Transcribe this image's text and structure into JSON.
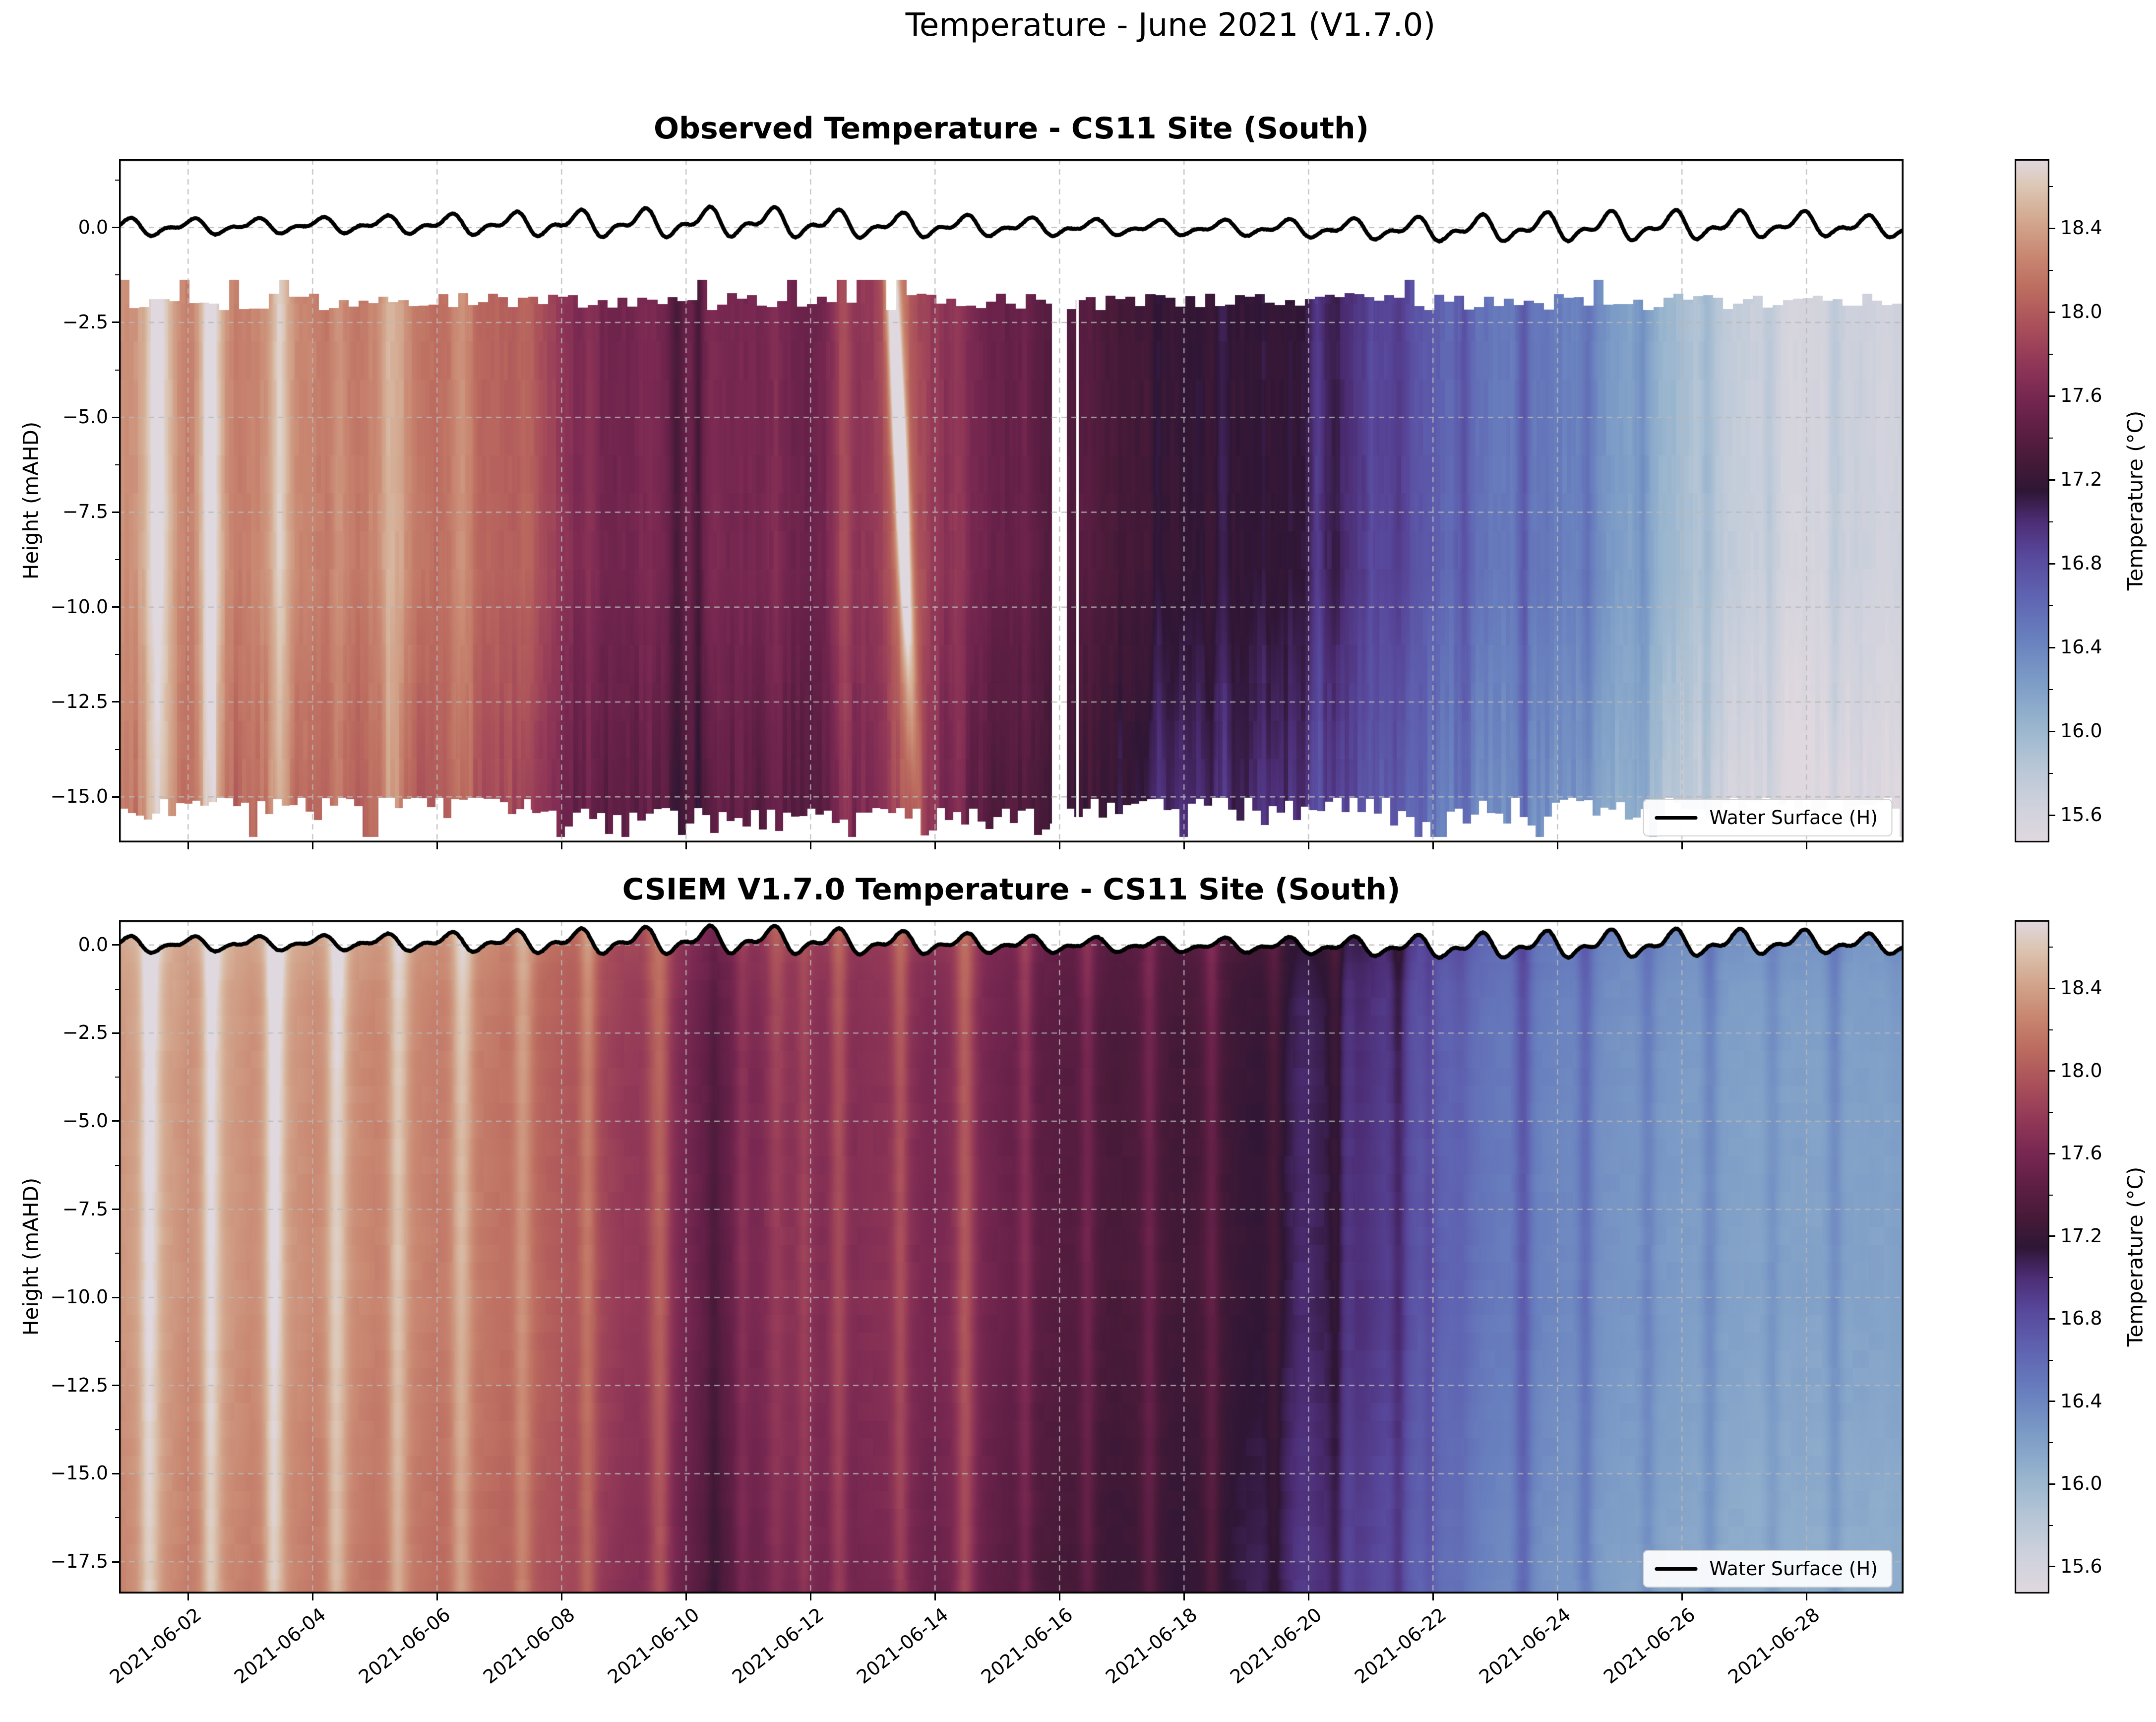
{
  "figure": {
    "suptitle": "Temperature - June 2021 (V1.7.0)"
  },
  "chart_data": {
    "type": "heatmap",
    "suptitle": "Temperature - June 2021 (V1.7.0)",
    "colormap": {
      "vmin": 15.47,
      "vmax": 18.73,
      "stops": [
        [
          0.0,
          "#e0d8df"
        ],
        [
          0.06,
          "#cdd1dc"
        ],
        [
          0.12,
          "#b3c4d5"
        ],
        [
          0.18,
          "#94b2cd"
        ],
        [
          0.24,
          "#7b9ac6"
        ],
        [
          0.3,
          "#687fbe"
        ],
        [
          0.36,
          "#5f64b2"
        ],
        [
          0.42,
          "#58489c"
        ],
        [
          0.47,
          "#4c2d75"
        ],
        [
          0.515,
          "#2f1635"
        ],
        [
          0.56,
          "#471a38"
        ],
        [
          0.61,
          "#611f46"
        ],
        [
          0.66,
          "#7b2952"
        ],
        [
          0.71,
          "#953a58"
        ],
        [
          0.76,
          "#ab525a"
        ],
        [
          0.81,
          "#bc6c5f"
        ],
        [
          0.86,
          "#c98872"
        ],
        [
          0.91,
          "#d3a78e"
        ],
        [
          0.96,
          "#dcc6b4"
        ],
        [
          1.0,
          "#e0d8df"
        ]
      ]
    },
    "colorbar": {
      "label": "Temperature (°C)",
      "major_ticks": [
        18.4,
        18.0,
        17.6,
        17.2,
        16.8,
        16.4,
        16.0,
        15.6
      ],
      "minor_ticks": [
        18.6,
        18.2,
        17.8,
        17.4,
        17.0,
        16.6,
        16.2,
        15.8
      ]
    },
    "x": {
      "xlim_days": [
        0.89,
        29.56
      ],
      "tick_days": [
        2,
        4,
        6,
        8,
        10,
        12,
        14,
        16,
        18,
        20,
        22,
        24,
        26,
        28
      ],
      "tick_labels": [
        "2021-06-02",
        "2021-06-04",
        "2021-06-06",
        "2021-06-08",
        "2021-06-10",
        "2021-06-12",
        "2021-06-14",
        "2021-06-16",
        "2021-06-18",
        "2021-06-20",
        "2021-06-22",
        "2021-06-24",
        "2021-06-26",
        "2021-06-28"
      ]
    },
    "water_surface": {
      "drift": [
        [
          1,
          0.0
        ],
        [
          5,
          0.07
        ],
        [
          9,
          0.1
        ],
        [
          11,
          0.14
        ],
        [
          13,
          0.06
        ],
        [
          16,
          0.0
        ],
        [
          19,
          -0.02
        ],
        [
          22,
          -0.06
        ],
        [
          24,
          0.0
        ],
        [
          26,
          0.04
        ],
        [
          28,
          0.08
        ],
        [
          29.5,
          -0.02
        ]
      ],
      "components": [
        [
          1.035,
          0.22,
          1.8
        ],
        [
          0.517,
          0.13,
          0.6
        ]
      ],
      "spring_neap": {
        "period": 14.5,
        "ref_day": 6.9,
        "amp": 0.32
      }
    },
    "panels": [
      {
        "kind": "observed",
        "title": "Observed Temperature - CS11 Site (South)",
        "ylabel": "Height (mAHD)",
        "legend_label": "Water Surface (H)",
        "ylim": [
          -16.2,
          1.8
        ],
        "yticks": [
          0.0,
          -2.5,
          -5.0,
          -7.5,
          -10.0,
          -12.5,
          -15.0
        ],
        "sensor_top": -2.0,
        "sensor_bottom": -15.1,
        "gap_days": [
          [
            15.88,
            16.12
          ],
          [
            16.27,
            16.31
          ]
        ],
        "diurnal_amp": 0.12,
        "profile": [
          [
            0.95,
            18.3
          ],
          [
            1.5,
            18.45
          ],
          [
            2.0,
            18.2
          ],
          [
            2.35,
            18.5
          ],
          [
            2.8,
            18.2
          ],
          [
            3.5,
            18.35
          ],
          [
            4.1,
            18.2
          ],
          [
            4.6,
            18.15
          ],
          [
            5.2,
            18.3
          ],
          [
            5.8,
            18.15
          ],
          [
            6.5,
            18.1
          ],
          [
            7.0,
            18.05
          ],
          [
            7.5,
            18.0
          ],
          [
            7.95,
            17.8
          ],
          [
            8.3,
            17.6
          ],
          [
            8.8,
            17.55
          ],
          [
            9.3,
            17.6
          ],
          [
            9.8,
            17.5
          ],
          [
            10.3,
            17.55
          ],
          [
            10.9,
            17.6
          ],
          [
            11.5,
            17.55
          ],
          [
            12.0,
            17.5
          ],
          [
            12.55,
            17.7
          ],
          [
            13.0,
            17.75
          ],
          [
            13.45,
            17.95
          ],
          [
            13.8,
            17.85
          ],
          [
            14.3,
            17.65
          ],
          [
            14.8,
            17.55
          ],
          [
            15.3,
            17.45
          ],
          [
            15.7,
            17.4
          ],
          [
            16.2,
            17.35
          ],
          [
            16.8,
            17.3
          ],
          [
            17.3,
            17.25
          ],
          [
            17.8,
            17.2
          ],
          [
            18.3,
            17.15
          ],
          [
            18.8,
            17.2
          ],
          [
            19.3,
            17.12
          ],
          [
            19.8,
            17.15
          ],
          [
            20.3,
            17.05
          ],
          [
            20.8,
            16.95
          ],
          [
            21.3,
            16.85
          ],
          [
            21.8,
            16.75
          ],
          [
            22.3,
            16.6
          ],
          [
            22.8,
            16.55
          ],
          [
            23.3,
            16.45
          ],
          [
            23.8,
            16.5
          ],
          [
            24.3,
            16.4
          ],
          [
            24.8,
            16.3
          ],
          [
            25.3,
            16.15
          ],
          [
            25.8,
            16.0
          ],
          [
            26.3,
            15.85
          ],
          [
            26.8,
            15.75
          ],
          [
            27.3,
            15.68
          ],
          [
            27.8,
            15.58
          ],
          [
            28.3,
            15.6
          ],
          [
            28.8,
            15.68
          ],
          [
            29.5,
            15.6
          ]
        ],
        "light_streaks": [
          [
            1.55,
            0.3,
            0.15
          ],
          [
            2.35,
            0.35,
            0.1
          ],
          [
            3.5,
            0.15,
            0.12
          ],
          [
            5.25,
            0.2,
            0.12
          ],
          [
            6.3,
            0.1,
            0.1
          ],
          [
            12.55,
            0.15,
            0.1
          ],
          [
            14.35,
            0.1,
            0.07
          ],
          [
            22.5,
            0.12,
            0.06
          ],
          [
            23.45,
            0.18,
            0.07
          ],
          [
            24.5,
            0.12,
            0.06
          ],
          [
            25.35,
            0.15,
            0.07
          ],
          [
            26.4,
            0.1,
            0.06
          ],
          [
            27.4,
            0.08,
            0.06
          ],
          [
            28.45,
            0.1,
            0.07
          ]
        ],
        "dark_streaks": [
          [
            9.85,
            -0.2,
            0.07
          ],
          [
            10.2,
            -0.25,
            0.05
          ],
          [
            17.55,
            -0.1,
            0.08
          ],
          [
            18.6,
            -0.12,
            0.1
          ],
          [
            20.15,
            -0.18,
            0.07
          ],
          [
            21.0,
            -0.12,
            0.05
          ]
        ],
        "anomaly": {
          "day": 13.32,
          "amp": 1.25,
          "width": 0.075,
          "tilt_days_per_m": 0.028,
          "depth_center": -5.5,
          "depth_width": 4.8
        }
      },
      {
        "kind": "model",
        "title": "CSIEM V1.7.0 Temperature - CS11 Site (South)",
        "ylabel": "Height (mAHD)",
        "legend_label": "Water Surface (H)",
        "ylim": [
          -18.4,
          0.7
        ],
        "yticks": [
          0.0,
          -2.5,
          -5.0,
          -7.5,
          -10.0,
          -12.5,
          -15.0,
          -17.5
        ],
        "diurnal_amp": 0.22,
        "profile": [
          [
            0.95,
            18.35
          ],
          [
            1.5,
            18.45
          ],
          [
            2.0,
            18.3
          ],
          [
            2.5,
            18.4
          ],
          [
            3.0,
            18.3
          ],
          [
            3.5,
            18.38
          ],
          [
            4.0,
            18.28
          ],
          [
            4.5,
            18.33
          ],
          [
            5.0,
            18.24
          ],
          [
            5.5,
            18.28
          ],
          [
            6.0,
            18.2
          ],
          [
            6.5,
            18.22
          ],
          [
            7.0,
            18.15
          ],
          [
            7.5,
            18.08
          ],
          [
            8.0,
            18.0
          ],
          [
            8.5,
            17.9
          ],
          [
            9.0,
            17.78
          ],
          [
            9.6,
            17.72
          ],
          [
            10.0,
            17.6
          ],
          [
            10.45,
            17.38
          ],
          [
            10.9,
            17.55
          ],
          [
            11.4,
            17.68
          ],
          [
            11.9,
            17.72
          ],
          [
            12.4,
            17.62
          ],
          [
            12.9,
            17.68
          ],
          [
            13.4,
            17.72
          ],
          [
            13.9,
            17.6
          ],
          [
            14.45,
            17.68
          ],
          [
            14.9,
            17.55
          ],
          [
            15.4,
            17.45
          ],
          [
            15.9,
            17.4
          ],
          [
            16.4,
            17.36
          ],
          [
            16.9,
            17.3
          ],
          [
            17.4,
            17.34
          ],
          [
            17.9,
            17.26
          ],
          [
            18.4,
            17.3
          ],
          [
            18.9,
            17.2
          ],
          [
            19.4,
            17.15
          ],
          [
            19.9,
            17.1
          ],
          [
            20.4,
            17.08
          ],
          [
            20.9,
            16.98
          ],
          [
            21.4,
            16.85
          ],
          [
            21.9,
            16.7
          ],
          [
            22.4,
            16.6
          ],
          [
            22.9,
            16.5
          ],
          [
            23.4,
            16.45
          ],
          [
            23.9,
            16.4
          ],
          [
            24.4,
            16.35
          ],
          [
            24.9,
            16.3
          ],
          [
            25.4,
            16.26
          ],
          [
            25.9,
            16.25
          ],
          [
            26.4,
            16.2
          ],
          [
            26.9,
            16.2
          ],
          [
            27.4,
            16.16
          ],
          [
            27.9,
            16.2
          ],
          [
            28.4,
            16.16
          ],
          [
            28.9,
            16.2
          ],
          [
            29.5,
            16.16
          ]
        ],
        "light_streaks": [
          [
            1.35,
            0.25,
            0.09
          ],
          [
            2.35,
            0.3,
            0.09
          ],
          [
            3.35,
            0.28,
            0.09
          ],
          [
            4.35,
            0.22,
            0.09
          ],
          [
            5.35,
            0.25,
            0.09
          ],
          [
            6.35,
            0.18,
            0.09
          ],
          [
            7.35,
            0.18,
            0.09
          ],
          [
            8.4,
            0.15,
            0.09
          ],
          [
            9.6,
            0.3,
            0.11
          ],
          [
            10.9,
            0.15,
            0.09
          ],
          [
            11.9,
            0.12,
            0.08
          ],
          [
            12.45,
            0.18,
            0.1
          ],
          [
            13.45,
            0.12,
            0.08
          ],
          [
            14.5,
            0.25,
            0.11
          ],
          [
            15.45,
            0.1,
            0.08
          ],
          [
            16.45,
            0.12,
            0.08
          ],
          [
            17.45,
            0.12,
            0.08
          ],
          [
            18.45,
            0.08,
            0.07
          ],
          [
            19.45,
            0.06,
            0.07
          ],
          [
            20.45,
            0.08,
            0.07
          ],
          [
            21.45,
            0.1,
            0.07
          ],
          [
            21.95,
            0.12,
            0.07
          ],
          [
            23.45,
            0.2,
            0.09
          ],
          [
            24.45,
            0.12,
            0.08
          ],
          [
            25.45,
            0.1,
            0.08
          ],
          [
            26.45,
            0.1,
            0.08
          ],
          [
            27.45,
            0.08,
            0.08
          ],
          [
            28.45,
            0.1,
            0.08
          ]
        ],
        "dark_streaks": [
          [
            10.45,
            -0.15,
            0.08
          ],
          [
            19.9,
            -0.08,
            0.15
          ],
          [
            20.6,
            -0.1,
            0.1
          ]
        ]
      }
    ]
  }
}
